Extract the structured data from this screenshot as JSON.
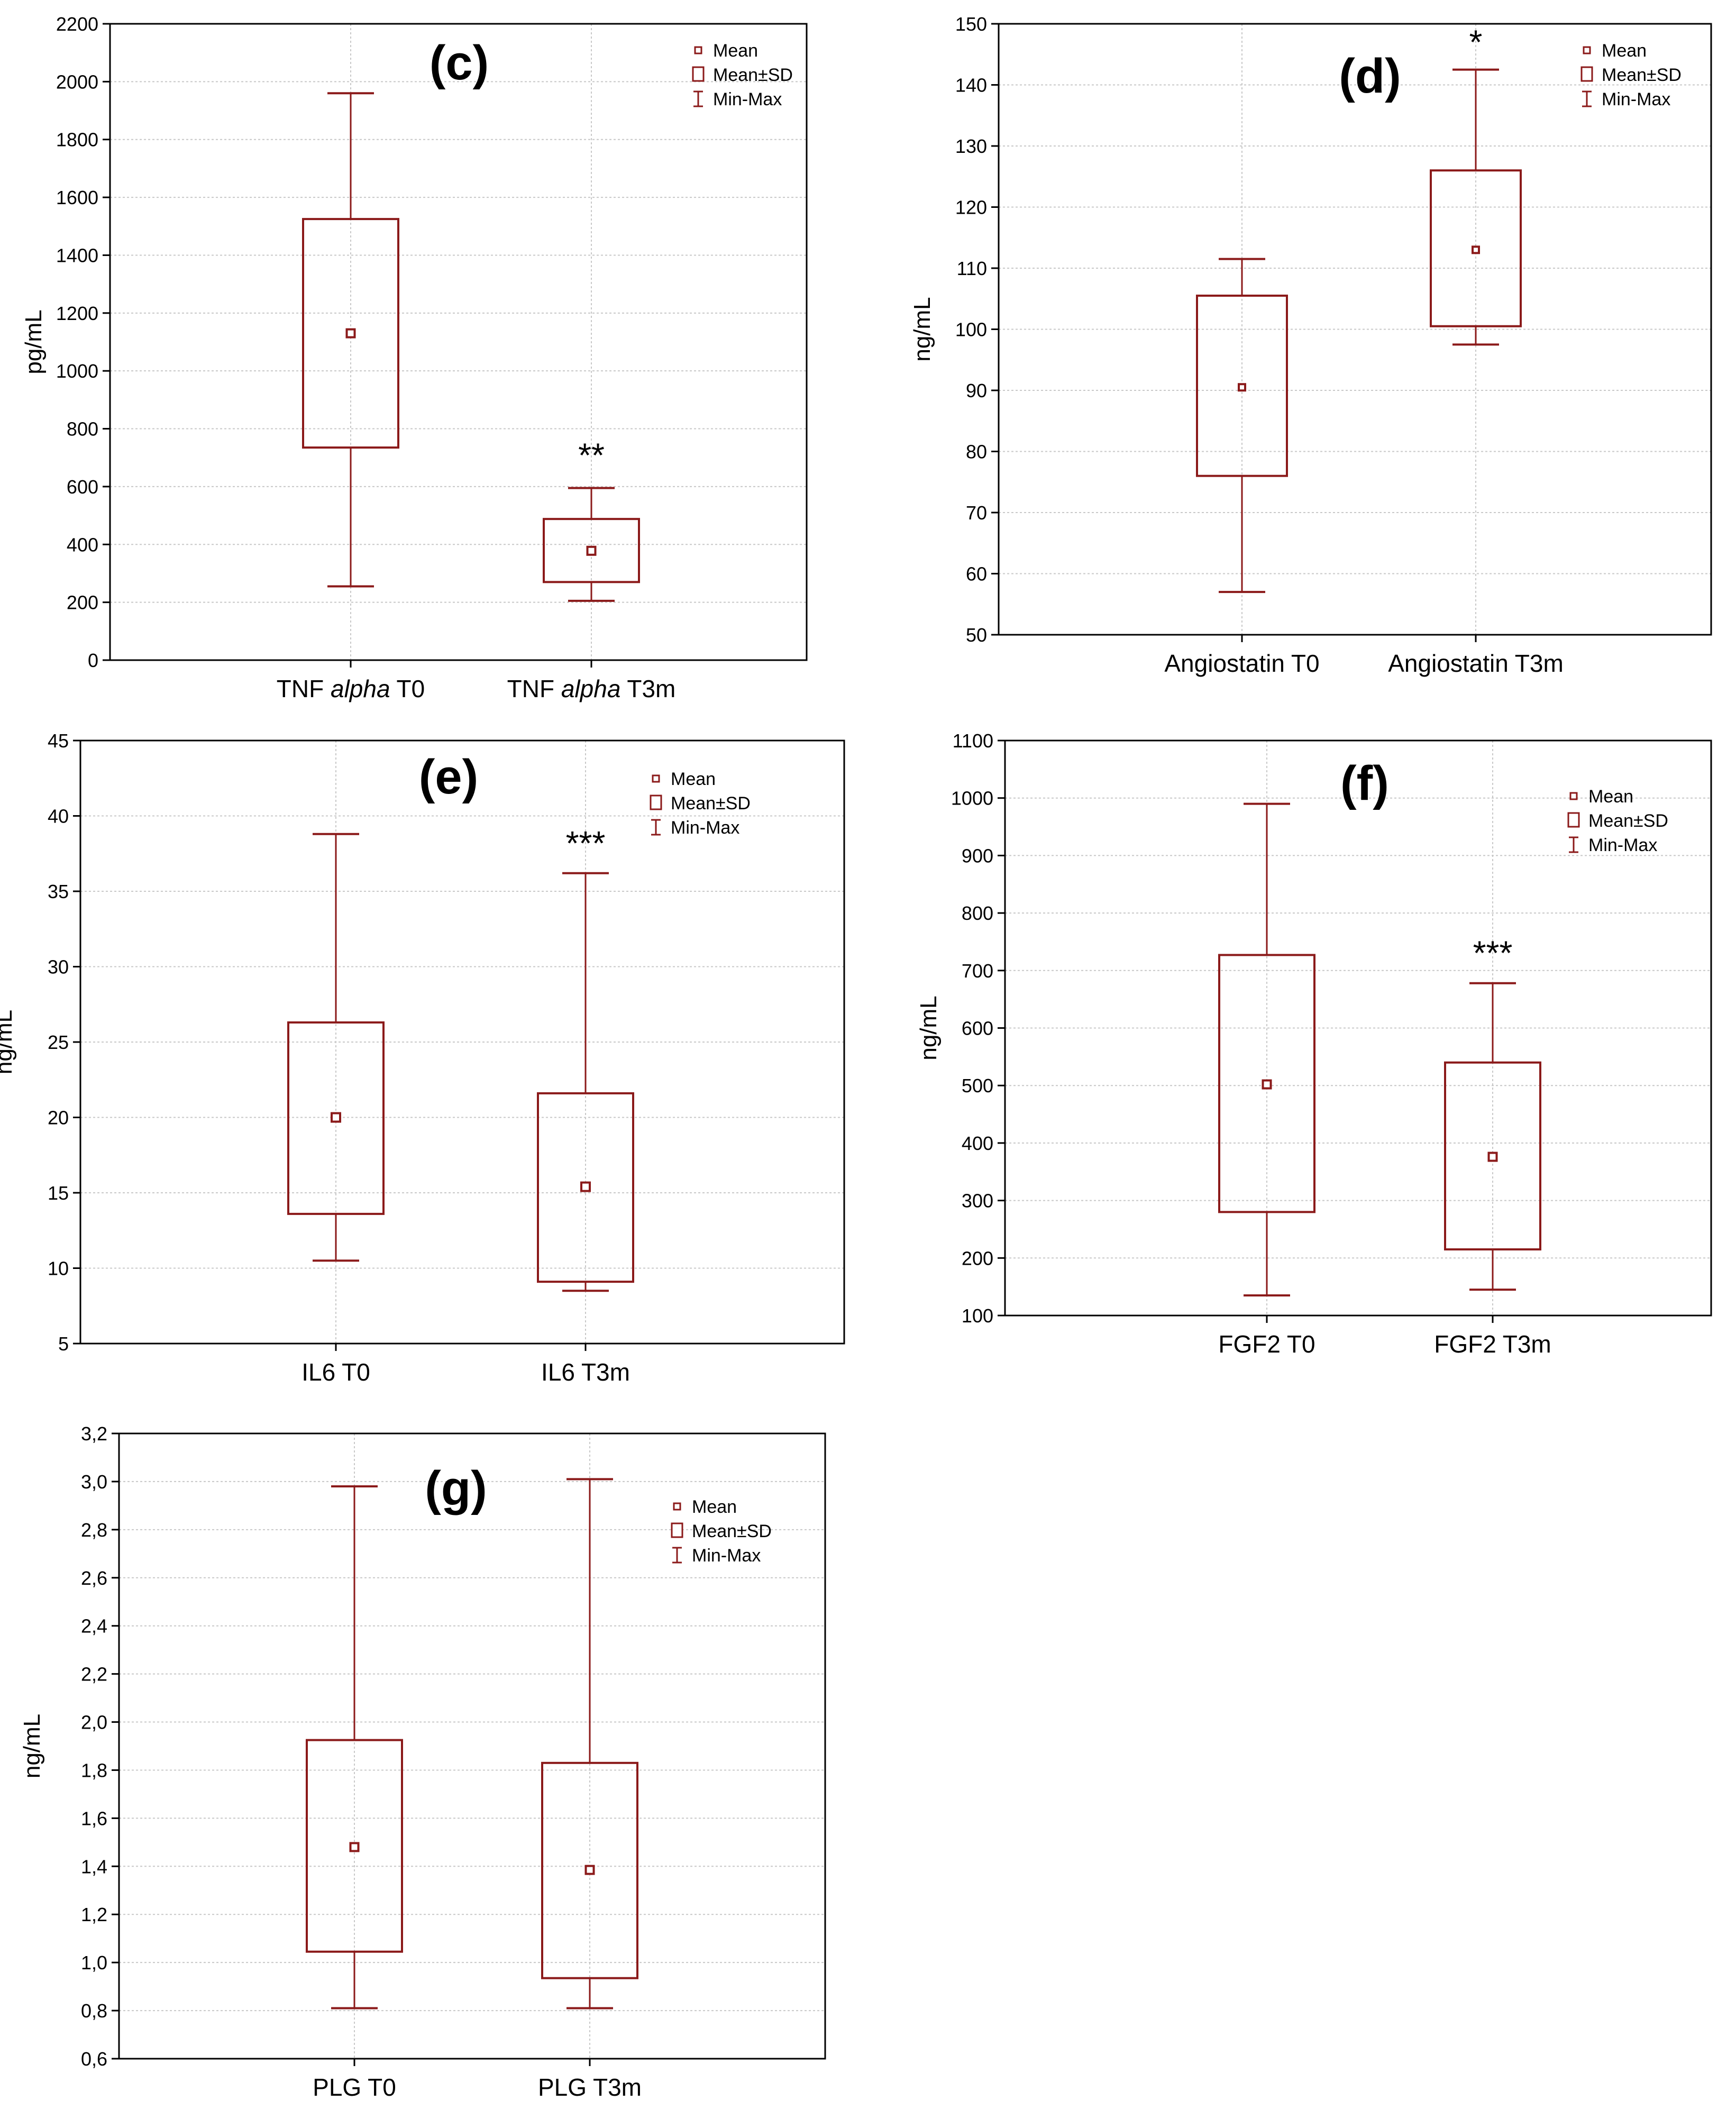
{
  "colors": {
    "box": "#8b1a1a",
    "grid": "#c8c8c8",
    "axis": "#000000",
    "text": "#000000"
  },
  "chart_data": [
    {
      "type": "box",
      "panel_label": "(c)",
      "ylabel": "pg/mL",
      "ylim": [
        0,
        2200
      ],
      "yticks": [
        0,
        200,
        400,
        600,
        800,
        1000,
        1200,
        1400,
        1600,
        1800,
        2000,
        2200
      ],
      "tick_labels": [
        "0",
        "200",
        "400",
        "600",
        "800",
        "1000",
        "1200",
        "1400",
        "1600",
        "1800",
        "2000",
        "2200"
      ],
      "categories": [
        {
          "parts": [
            {
              "t": "TNF ",
              "i": false
            },
            {
              "t": "alpha",
              "i": true
            },
            {
              "t": " T0",
              "i": false
            }
          ]
        },
        {
          "parts": [
            {
              "t": "TNF ",
              "i": false
            },
            {
              "t": "alpha",
              "i": true
            },
            {
              "t": " T3m",
              "i": false
            }
          ]
        }
      ],
      "series": [
        {
          "min": 255,
          "mean_minus_sd": 735,
          "mean": 1130,
          "mean_plus_sd": 1525,
          "max": 1960,
          "significance": ""
        },
        {
          "min": 205,
          "mean_minus_sd": 270,
          "mean": 378,
          "mean_plus_sd": 488,
          "max": 595,
          "significance": "**"
        }
      ],
      "legend": {
        "mean": "Mean",
        "sd": "Mean±SD",
        "minmax": "Min-Max",
        "position": "top-right"
      }
    },
    {
      "type": "box",
      "panel_label": "(d)",
      "ylabel": "ng/mL",
      "ylim": [
        50,
        150
      ],
      "yticks": [
        50,
        60,
        70,
        80,
        90,
        100,
        110,
        120,
        130,
        140,
        150
      ],
      "tick_labels": [
        "50",
        "60",
        "70",
        "80",
        "90",
        "100",
        "110",
        "120",
        "130",
        "140",
        "150"
      ],
      "categories": [
        {
          "parts": [
            {
              "t": "Angiostatin T0",
              "i": false
            }
          ]
        },
        {
          "parts": [
            {
              "t": "Angiostatin T3m",
              "i": false
            }
          ]
        }
      ],
      "series": [
        {
          "min": 57,
          "mean_minus_sd": 76,
          "mean": 90.5,
          "mean_plus_sd": 105.5,
          "max": 111.5,
          "significance": ""
        },
        {
          "min": 97.5,
          "mean_minus_sd": 100.5,
          "mean": 113,
          "mean_plus_sd": 126,
          "max": 142.5,
          "significance": "*"
        }
      ],
      "legend": {
        "mean": "Mean",
        "sd": "Mean±SD",
        "minmax": "Min-Max",
        "position": "top-right"
      }
    },
    {
      "type": "box",
      "panel_label": "(e)",
      "ylabel": "ng/mL",
      "ylim": [
        5,
        45
      ],
      "yticks": [
        5,
        10,
        15,
        20,
        25,
        30,
        35,
        40,
        45
      ],
      "tick_labels": [
        "5",
        "10",
        "15",
        "20",
        "25",
        "30",
        "35",
        "40",
        "45"
      ],
      "categories": [
        {
          "parts": [
            {
              "t": "IL6 T0",
              "i": false
            }
          ]
        },
        {
          "parts": [
            {
              "t": "IL6 T3m",
              "i": false
            }
          ]
        }
      ],
      "series": [
        {
          "min": 10.5,
          "mean_minus_sd": 13.6,
          "mean": 20,
          "mean_plus_sd": 26.3,
          "max": 38.8,
          "significance": ""
        },
        {
          "min": 8.5,
          "mean_minus_sd": 9.1,
          "mean": 15.4,
          "mean_plus_sd": 21.6,
          "max": 36.2,
          "significance": "***"
        }
      ],
      "legend": {
        "mean": "Mean",
        "sd": "Mean±SD",
        "minmax": "Min-Max",
        "position": "top-right"
      }
    },
    {
      "type": "box",
      "panel_label": "(f)",
      "ylabel": "ng/mL",
      "ylim": [
        100,
        1100
      ],
      "yticks": [
        100,
        200,
        300,
        400,
        500,
        600,
        700,
        800,
        900,
        1000,
        1100
      ],
      "tick_labels": [
        "100",
        "200",
        "300",
        "400",
        "500",
        "600",
        "700",
        "800",
        "900",
        "1000",
        "1100"
      ],
      "categories": [
        {
          "parts": [
            {
              "t": "FGF2 T0",
              "i": false
            }
          ]
        },
        {
          "parts": [
            {
              "t": "FGF2 T3m",
              "i": false
            }
          ]
        }
      ],
      "series": [
        {
          "min": 135,
          "mean_minus_sd": 280,
          "mean": 502,
          "mean_plus_sd": 727,
          "max": 990,
          "significance": ""
        },
        {
          "min": 145,
          "mean_minus_sd": 215,
          "mean": 376,
          "mean_plus_sd": 540,
          "max": 678,
          "significance": "***"
        }
      ],
      "legend": {
        "mean": "Mean",
        "sd": "Mean±SD",
        "minmax": "Min-Max",
        "position": "top-right"
      }
    },
    {
      "type": "box",
      "panel_label": "(g)",
      "ylabel": "ng/mL",
      "ylim": [
        0.6,
        3.2
      ],
      "yticks": [
        0.6,
        0.8,
        1.0,
        1.2,
        1.4,
        1.6,
        1.8,
        2.0,
        2.2,
        2.4,
        2.6,
        2.8,
        3.0,
        3.2
      ],
      "tick_labels": [
        "0,6",
        "0,8",
        "1,0",
        "1,2",
        "1,4",
        "1,6",
        "1,8",
        "2,0",
        "2,2",
        "2,4",
        "2,6",
        "2,8",
        "3,0",
        "3,2"
      ],
      "categories": [
        {
          "parts": [
            {
              "t": "PLG T0",
              "i": false
            }
          ]
        },
        {
          "parts": [
            {
              "t": "PLG T3m",
              "i": false
            }
          ]
        }
      ],
      "series": [
        {
          "min": 0.81,
          "mean_minus_sd": 1.045,
          "mean": 1.48,
          "mean_plus_sd": 1.925,
          "max": 2.98,
          "significance": ""
        },
        {
          "min": 0.81,
          "mean_minus_sd": 0.935,
          "mean": 1.385,
          "mean_plus_sd": 1.83,
          "max": 3.01,
          "significance": ""
        }
      ],
      "legend": {
        "mean": "Mean",
        "sd": "Mean±SD",
        "minmax": "Min-Max",
        "position": "top-right"
      }
    }
  ]
}
